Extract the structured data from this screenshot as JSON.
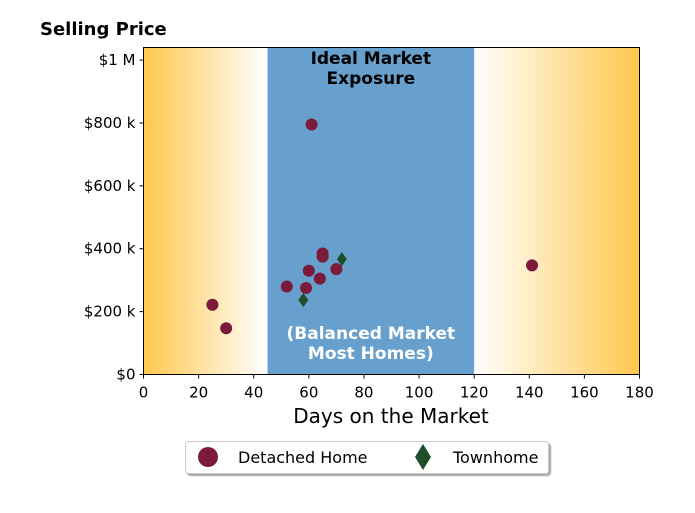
{
  "chart_data": {
    "type": "scatter",
    "title": "Selling Price",
    "xlabel": "Days on the Market",
    "ylabel": "",
    "xlim": [
      0,
      180
    ],
    "ylim": [
      0,
      1040000
    ],
    "x_ticks": [
      0,
      20,
      40,
      60,
      80,
      100,
      120,
      140,
      160,
      180
    ],
    "x_tick_labels": [
      "0",
      "20",
      "40",
      "60",
      "80",
      "100",
      "120",
      "140",
      "160",
      "180"
    ],
    "y_ticks": [
      0,
      200000,
      400000,
      600000,
      800000,
      1000000
    ],
    "y_tick_labels": [
      "$0",
      "$200 k",
      "$400 k",
      "$600 k",
      "$800 k",
      "$1 M"
    ],
    "grid": false,
    "legend_position": "bottom-center",
    "background_zones": [
      {
        "x_range": [
          0,
          45
        ],
        "fill": "gradient",
        "color": "#ffc84d",
        "direction": "fade-right"
      },
      {
        "x_range": [
          45,
          120
        ],
        "fill": "solid",
        "color": "#67a0cd",
        "label_top": [
          "Ideal Market",
          "Exposure"
        ],
        "label_bottom": [
          "(Balanced Market",
          "Most Homes)"
        ]
      },
      {
        "x_range": [
          120,
          180
        ],
        "fill": "gradient",
        "color": "#ffc84d",
        "direction": "fade-left"
      }
    ],
    "series": [
      {
        "name": "Detached Home",
        "marker": "circle",
        "color": "#7b1a3a",
        "points": [
          {
            "x": 25,
            "y": 222000
          },
          {
            "x": 30,
            "y": 147000
          },
          {
            "x": 52,
            "y": 280000
          },
          {
            "x": 59,
            "y": 275000
          },
          {
            "x": 60,
            "y": 330000
          },
          {
            "x": 61,
            "y": 795000
          },
          {
            "x": 64,
            "y": 305000
          },
          {
            "x": 65,
            "y": 385000
          },
          {
            "x": 65,
            "y": 375000
          },
          {
            "x": 70,
            "y": 335000
          },
          {
            "x": 141,
            "y": 347000
          }
        ]
      },
      {
        "name": "Townhome",
        "marker": "diamond",
        "color": "#1f4e2c",
        "points": [
          {
            "x": 58,
            "y": 237000
          },
          {
            "x": 72,
            "y": 367000
          }
        ]
      }
    ]
  }
}
